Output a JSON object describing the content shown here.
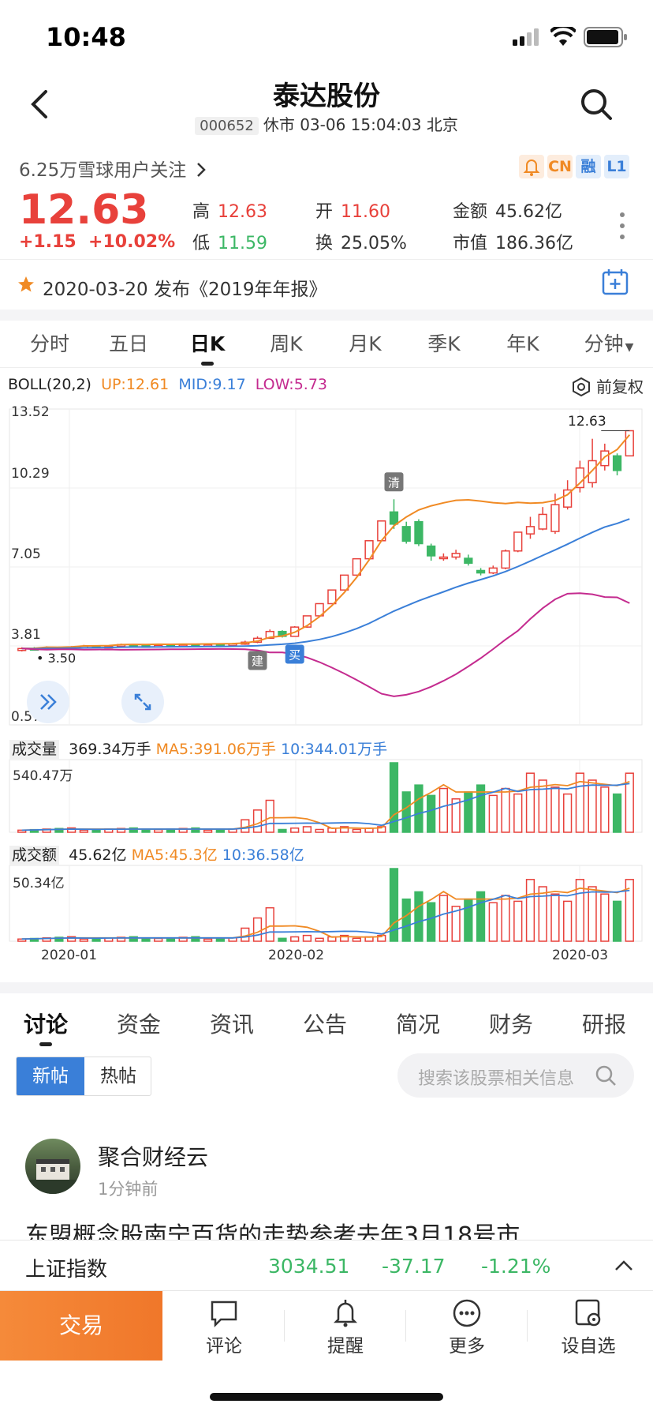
{
  "status": {
    "time": "10:48"
  },
  "nav": {
    "title": "泰达股份",
    "code": "000652",
    "market_status": "休市 03-06 15:04:03 北京"
  },
  "followers": "6.25万雪球用户关注",
  "tags": [
    "CN",
    "融",
    "L1"
  ],
  "quote": {
    "price": "12.63",
    "change": "+1.15",
    "change_pct": "+10.02%",
    "high_label": "高",
    "high": "12.63",
    "low_label": "低",
    "low": "11.59",
    "open_label": "开",
    "open": "11.60",
    "turnover_label": "换",
    "turnover": "25.05%",
    "amount_label": "金额",
    "amount": "45.62亿",
    "mcap_label": "市值",
    "mcap": "186.36亿"
  },
  "notice": "2020-03-20 发布《2019年年报》",
  "ktabs": [
    "分时",
    "五日",
    "日K",
    "周K",
    "月K",
    "季K",
    "年K",
    "分钟"
  ],
  "ktab_active": 2,
  "boll": {
    "name": "BOLL(20,2)",
    "up": "UP:12.61",
    "mid": "MID:9.17",
    "low": "LOW:5.73"
  },
  "fuquan": "前复权",
  "price_axis": [
    "13.52",
    "10.29",
    "7.05",
    "3.81",
    "0.57"
  ],
  "price_marks": {
    "high": "12.63",
    "low": "3.50",
    "buy": "买",
    "build": "建",
    "clear": "清"
  },
  "volume": {
    "label": "成交量",
    "value": "369.34万手",
    "ma5": "MA5:391.06万手",
    "ma10": "10:344.01万手",
    "axis_max": "540.47万"
  },
  "amount": {
    "label": "成交额",
    "value": "45.62亿",
    "ma5": "MA5:45.3亿",
    "ma10": "10:36.58亿",
    "axis_max": "50.34亿"
  },
  "date_axis": [
    "2020-01",
    "2020-02",
    "2020-03"
  ],
  "chart_data": {
    "type": "candlestick",
    "series_note": "Daily K-line with BOLL(20,2) bands, volume and amount bars",
    "ylim": [
      0.57,
      13.52
    ],
    "candles": [
      [
        3.62,
        3.7,
        3.75,
        3.58
      ],
      [
        3.7,
        3.68,
        3.76,
        3.64
      ],
      [
        3.68,
        3.74,
        3.79,
        3.66
      ],
      [
        3.74,
        3.71,
        3.78,
        3.68
      ],
      [
        3.71,
        3.75,
        3.8,
        3.69
      ],
      [
        3.75,
        3.8,
        3.85,
        3.72
      ],
      [
        3.8,
        3.76,
        3.83,
        3.73
      ],
      [
        3.76,
        3.79,
        3.84,
        3.74
      ],
      [
        3.79,
        3.86,
        3.9,
        3.76
      ],
      [
        3.86,
        3.82,
        3.89,
        3.79
      ],
      [
        3.82,
        3.78,
        3.85,
        3.75
      ],
      [
        3.78,
        3.83,
        3.87,
        3.76
      ],
      [
        3.83,
        3.8,
        3.86,
        3.77
      ],
      [
        3.8,
        3.84,
        3.89,
        3.78
      ],
      [
        3.84,
        3.81,
        3.88,
        3.78
      ],
      [
        3.81,
        3.85,
        3.9,
        3.79
      ],
      [
        3.85,
        3.83,
        3.89,
        3.8
      ],
      [
        3.83,
        3.88,
        3.93,
        3.82
      ],
      [
        3.88,
        3.96,
        4.02,
        3.85
      ],
      [
        3.96,
        4.12,
        4.2,
        3.92
      ],
      [
        4.12,
        4.4,
        4.48,
        4.1
      ],
      [
        4.4,
        4.2,
        4.45,
        4.15
      ],
      [
        4.2,
        4.58,
        4.62,
        4.18
      ],
      [
        4.58,
        5.04,
        5.04,
        4.55
      ],
      [
        5.04,
        5.54,
        5.54,
        5.02
      ],
      [
        5.54,
        6.1,
        6.1,
        5.52
      ],
      [
        6.1,
        6.71,
        6.71,
        6.08
      ],
      [
        6.71,
        7.38,
        7.38,
        6.7
      ],
      [
        7.38,
        8.12,
        8.12,
        7.36
      ],
      [
        8.12,
        8.93,
        8.93,
        8.1
      ],
      [
        9.3,
        8.8,
        9.82,
        8.6
      ],
      [
        8.7,
        8.1,
        8.9,
        8.0
      ],
      [
        8.9,
        8.0,
        9.0,
        7.9
      ],
      [
        7.9,
        7.5,
        8.0,
        7.3
      ],
      [
        7.4,
        7.45,
        7.6,
        7.3
      ],
      [
        7.45,
        7.6,
        7.75,
        7.35
      ],
      [
        7.4,
        7.2,
        7.55,
        7.1
      ],
      [
        6.9,
        6.8,
        7.0,
        6.7
      ],
      [
        6.8,
        7.0,
        7.1,
        6.75
      ],
      [
        7.0,
        7.7,
        7.76,
        6.95
      ],
      [
        7.7,
        8.47,
        8.47,
        7.65
      ],
      [
        8.4,
        8.7,
        9.1,
        8.2
      ],
      [
        8.6,
        9.2,
        9.5,
        8.55
      ],
      [
        8.5,
        9.6,
        10.05,
        8.4
      ],
      [
        9.5,
        10.2,
        10.6,
        9.4
      ],
      [
        10.3,
        11.1,
        11.4,
        10.1
      ],
      [
        10.5,
        11.4,
        12.3,
        10.3
      ],
      [
        11.2,
        11.8,
        12.1,
        11.0
      ],
      [
        11.6,
        11.0,
        11.7,
        10.8
      ],
      [
        11.6,
        12.63,
        12.63,
        11.59
      ]
    ],
    "boll_up": "12.61",
    "boll_mid": "9.17",
    "boll_low": "5.73"
  },
  "detail_tabs": [
    "讨论",
    "资金",
    "资讯",
    "公告",
    "简况",
    "财务",
    "研报"
  ],
  "segment": [
    "新帖",
    "热帖"
  ],
  "search_placeholder": "搜索该股票相关信息",
  "post": {
    "author": "聚合财经云",
    "time": "1分钟前",
    "body": "东盟概念股南宁百货的走势参考去年3月18号市"
  },
  "index_bar": {
    "name": "上证指数",
    "value": "3034.51",
    "change": "-37.17",
    "pct": "-1.21%"
  },
  "bottom": {
    "trade": "交易",
    "comment": "评论",
    "remind": "提醒",
    "more": "更多",
    "watch": "设自选"
  }
}
